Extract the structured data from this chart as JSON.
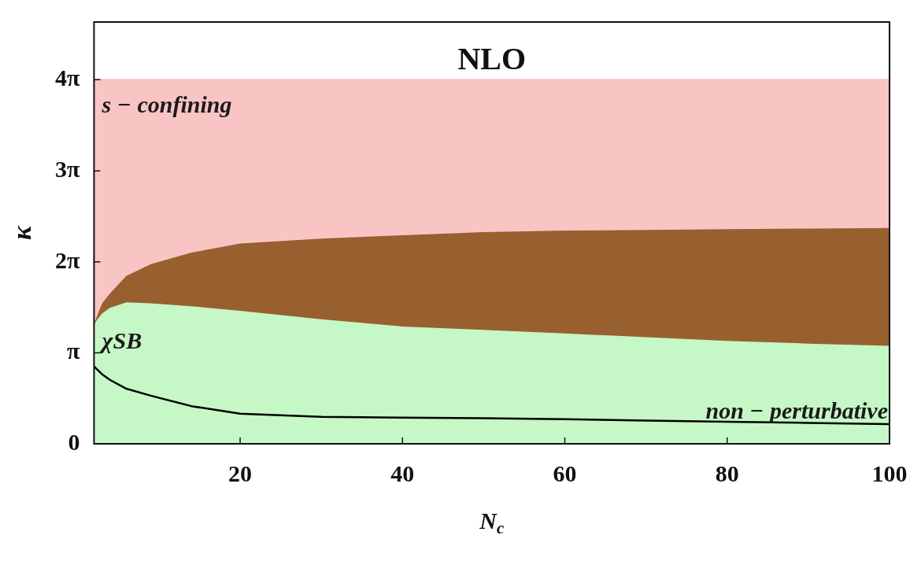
{
  "chart_data": {
    "type": "area",
    "title": "NLO",
    "xlabel": "N$_{c}$",
    "ylabel": "κ",
    "x": [
      2,
      3,
      4,
      6,
      9,
      14,
      20,
      30,
      40,
      50,
      60,
      70,
      80,
      90,
      100
    ],
    "xlim": [
      2,
      100
    ],
    "xticks": [
      20,
      40,
      60,
      80,
      100
    ],
    "ylim": [
      0,
      14.56
    ],
    "yticks": [
      0,
      {
        "value": 3.14,
        "label": "π"
      },
      {
        "value": 6.28,
        "label": "2π"
      },
      {
        "value": 9.42,
        "label": "3π"
      },
      {
        "value": 12.57,
        "label": "4π"
      }
    ],
    "legend": false,
    "marker": "none",
    "series": [
      {
        "color": "#c6f7c6",
        "values": [
          4.14,
          4.5,
          4.7,
          4.88,
          4.85,
          4.75,
          4.59,
          4.3,
          4.05,
          3.93,
          3.81,
          3.68,
          3.55,
          3.46,
          3.38
        ]
      },
      {
        "color": "#98602f",
        "values": [
          4.14,
          4.85,
          5.2,
          5.8,
          6.2,
          6.6,
          6.91,
          7.08,
          7.2,
          7.31,
          7.36,
          7.38,
          7.41,
          7.43,
          7.45
        ]
      },
      {
        "color": "#f9c4c4",
        "values": [
          12.57,
          12.57,
          12.57,
          12.57,
          12.57,
          12.57,
          12.57,
          12.57,
          12.57,
          12.57,
          12.57,
          12.57,
          12.57,
          12.57,
          12.57
        ]
      },
      {
        "type": "line",
        "color": "#000000",
        "values": [
          2.67,
          2.4,
          2.2,
          1.9,
          1.66,
          1.3,
          1.04,
          0.93,
          0.9,
          0.88,
          0.85,
          0.8,
          0.76,
          0.72,
          0.68
        ]
      }
    ],
    "annotations": [
      "s − confining",
      "χSB",
      "non − perturbative"
    ]
  }
}
